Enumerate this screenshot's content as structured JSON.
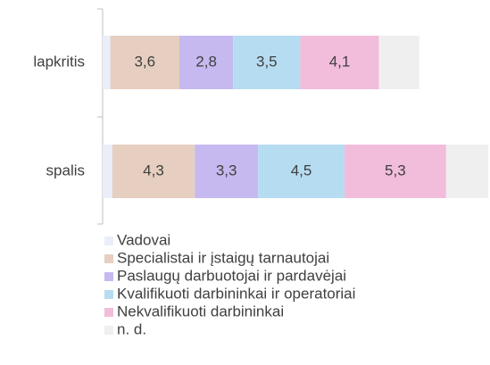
{
  "chart_data": {
    "type": "stacked-bar-horizontal",
    "categories": [
      "lapkritis",
      "spalis"
    ],
    "series": [
      {
        "name": "Vadovai",
        "color": "#e9eef8",
        "values": [
          0.4,
          0.5
        ],
        "value_labels": [
          null,
          null
        ]
      },
      {
        "name": "Specialistai ir įstaigų tarnautojai",
        "color": "#e6cfc0",
        "values": [
          3.6,
          4.3
        ],
        "value_labels": [
          "3,6",
          "4,3"
        ]
      },
      {
        "name": "Paslaugų darbuotojai ir pardavėjai",
        "color": "#c6b9ef",
        "values": [
          2.8,
          3.3
        ],
        "value_labels": [
          "2,8",
          "3,3"
        ]
      },
      {
        "name": "Kvalifikuoti darbininkai ir operatoriai",
        "color": "#b6dcf2",
        "values": [
          3.5,
          4.5
        ],
        "value_labels": [
          "3,5",
          "4,5"
        ]
      },
      {
        "name": "Nekvalifikuoti darbininkai",
        "color": "#f1bddb",
        "values": [
          4.1,
          5.3
        ],
        "value_labels": [
          "4,1",
          "5,3"
        ]
      },
      {
        "name": "n. d.",
        "color": "#efefef",
        "values": [
          2.1,
          2.2
        ],
        "value_labels": [
          null,
          null
        ]
      }
    ]
  }
}
